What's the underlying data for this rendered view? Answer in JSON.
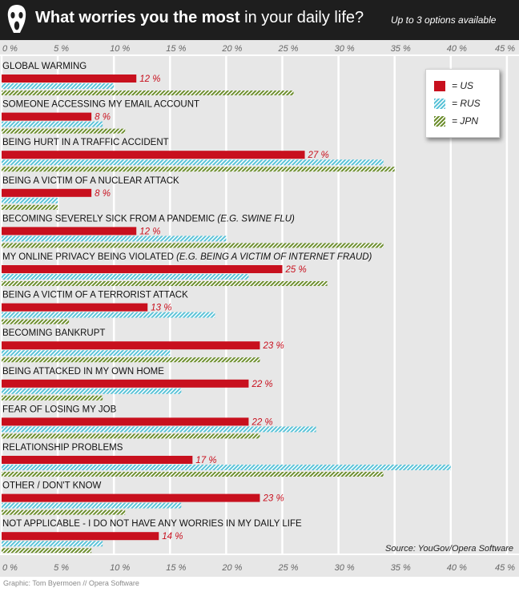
{
  "header": {
    "title_bold": "What worries you the most",
    "title_rest": " in your daily life?",
    "subtitle": "Up to 3 options available"
  },
  "legend": {
    "items": [
      {
        "label": "= US",
        "color": "#c8101e"
      },
      {
        "label": "= RUS",
        "color": "#5bc3d8"
      },
      {
        "label": "= JPN",
        "color": "#6d8e2e"
      }
    ]
  },
  "source": "Source: YouGov/Opera Software",
  "footer": "Graphic: Tom Byermoen // Opera Software",
  "chart_data": {
    "type": "bar",
    "orientation": "horizontal",
    "xlim": [
      0,
      45
    ],
    "ticks": [
      "0 %",
      "5 %",
      "10 %",
      "15 %",
      "20 %",
      "25 %",
      "30 %",
      "35 %",
      "40 %",
      "45 %"
    ],
    "tick_values": [
      0,
      5,
      10,
      15,
      20,
      25,
      30,
      35,
      40,
      45
    ],
    "grid": true,
    "legend_position": "top-right",
    "colors": {
      "US": "#c8101e",
      "RUS": "#5bc3d8",
      "JPN": "#6d8e2e",
      "grid": "#ffffff",
      "background": "#e7e7e7"
    },
    "categories": [
      {
        "label": "GLOBAL WARMING",
        "note": ""
      },
      {
        "label": "SOMEONE ACCESSING MY EMAIL ACCOUNT",
        "note": ""
      },
      {
        "label": "BEING HURT IN A TRAFFIC ACCIDENT",
        "note": ""
      },
      {
        "label": "BEING A VICTIM OF A NUCLEAR ATTACK",
        "note": ""
      },
      {
        "label": "BECOMING SEVERELY SICK FROM A PANDEMIC ",
        "note": "(E.G. SWINE FLU)"
      },
      {
        "label": "MY ONLINE PRIVACY BEING VIOLATED ",
        "note": "(E.G. BEING A VICTIM OF INTERNET FRAUD)"
      },
      {
        "label": "BEING A VICTIM OF A TERRORIST ATTACK",
        "note": ""
      },
      {
        "label": "BECOMING BANKRUPT",
        "note": ""
      },
      {
        "label": "BEING ATTACKED IN MY OWN HOME",
        "note": ""
      },
      {
        "label": "FEAR OF LOSING MY JOB",
        "note": ""
      },
      {
        "label": "RELATIONSHIP PROBLEMS",
        "note": ""
      },
      {
        "label": "OTHER / DON'T KNOW",
        "note": ""
      },
      {
        "label": "NOT APPLICABLE - I DO NOT HAVE ANY WORRIES IN MY DAILY LIFE",
        "note": ""
      }
    ],
    "series": [
      {
        "name": "US",
        "values": [
          12,
          8,
          27,
          8,
          12,
          25,
          13,
          23,
          22,
          22,
          17,
          23,
          14
        ],
        "labels": [
          "12 %",
          "8 %",
          "27 %",
          "8 %",
          "12 %",
          "25 %",
          "13 %",
          "23 %",
          "22 %",
          "22 %",
          "17 %",
          "23 %",
          "14 %"
        ]
      },
      {
        "name": "RUS",
        "values": [
          10,
          9,
          34,
          5,
          20,
          22,
          19,
          15,
          16,
          28,
          40,
          16,
          9
        ]
      },
      {
        "name": "JPN",
        "values": [
          26,
          11,
          35,
          5,
          34,
          29,
          6,
          23,
          9,
          23,
          34,
          11,
          8
        ]
      }
    ]
  }
}
